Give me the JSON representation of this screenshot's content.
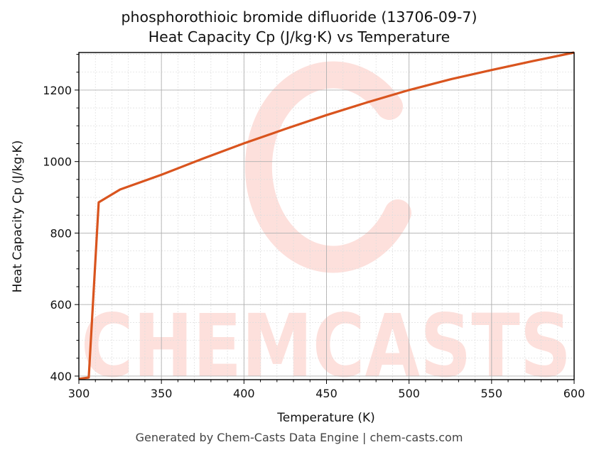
{
  "title_line1": "phosphorothioic bromide difluoride (13706-09-7)",
  "title_line2": "Heat Capacity Cp (J/kg·K) vs Temperature",
  "footer": "Generated by Chem-Casts Data Engine | chem-casts.com",
  "watermark": {
    "text": "CHEMCASTS",
    "color": "#fde0dc"
  },
  "colors": {
    "line": "#d9541e",
    "major_grid": "#b0b0b0",
    "minor_grid": "#dddddd",
    "axis": "#000000"
  },
  "chart_data": {
    "type": "line",
    "title": "phosphorothioic bromide difluoride (13706-09-7)\nHeat Capacity Cp (J/kg·K) vs Temperature",
    "xlabel": "Temperature (K)",
    "ylabel": "Heat Capacity Cp (J/kg·K)",
    "xlim": [
      300,
      600
    ],
    "ylim": [
      390,
      1305
    ],
    "xticks": [
      300,
      350,
      400,
      450,
      500,
      550,
      600
    ],
    "yticks": [
      400,
      600,
      800,
      1000,
      1200
    ],
    "x_minor_step": 10,
    "y_minor_step": 50,
    "grid": true,
    "legend": null,
    "series": [
      {
        "name": "Cp",
        "x": [
          300,
          306,
          312,
          325,
          350,
          375,
          400,
          425,
          450,
          475,
          500,
          525,
          550,
          575,
          600
        ],
        "values": [
          392,
          396,
          886,
          922,
          963,
          1008,
          1051,
          1091,
          1130,
          1166,
          1200,
          1230,
          1256,
          1281,
          1305
        ]
      }
    ]
  }
}
